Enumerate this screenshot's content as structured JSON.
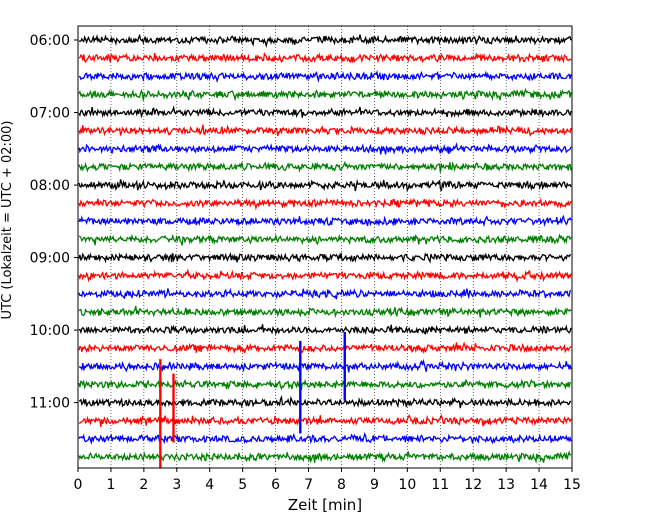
{
  "chart_data": {
    "type": "line",
    "title": "",
    "xlabel": "Zeit  [min]",
    "ylabel": "UTC (Lokalzeit = UTC + 02:00)",
    "xlim": [
      0,
      15
    ],
    "grid": "vertical dotted lines at each minute",
    "x_ticks": [
      "0",
      "1",
      "2",
      "3",
      "4",
      "5",
      "6",
      "7",
      "8",
      "9",
      "10",
      "11",
      "12",
      "13",
      "14",
      "15"
    ],
    "y_tick_labels": [
      "06:00",
      "07:00",
      "08:00",
      "09:00",
      "10:00",
      "11:00"
    ],
    "row_interval_minutes": 15,
    "rows": [
      {
        "time": "06:00",
        "color": "#000000"
      },
      {
        "time": "06:15",
        "color": "#ff0000"
      },
      {
        "time": "06:30",
        "color": "#0000ff"
      },
      {
        "time": "06:45",
        "color": "#008000"
      },
      {
        "time": "07:00",
        "color": "#000000"
      },
      {
        "time": "07:15",
        "color": "#ff0000"
      },
      {
        "time": "07:30",
        "color": "#0000ff"
      },
      {
        "time": "07:45",
        "color": "#008000"
      },
      {
        "time": "08:00",
        "color": "#000000"
      },
      {
        "time": "08:15",
        "color": "#ff0000"
      },
      {
        "time": "08:30",
        "color": "#0000ff"
      },
      {
        "time": "08:45",
        "color": "#008000"
      },
      {
        "time": "09:00",
        "color": "#000000"
      },
      {
        "time": "09:15",
        "color": "#ff0000"
      },
      {
        "time": "09:30",
        "color": "#0000ff"
      },
      {
        "time": "09:45",
        "color": "#008000"
      },
      {
        "time": "10:00",
        "color": "#000000"
      },
      {
        "time": "10:15",
        "color": "#ff0000"
      },
      {
        "time": "10:30",
        "color": "#0000ff"
      },
      {
        "time": "10:45",
        "color": "#008000"
      },
      {
        "time": "11:00",
        "color": "#000000"
      },
      {
        "time": "11:15",
        "color": "#ff0000"
      },
      {
        "time": "11:30",
        "color": "#0000ff"
      },
      {
        "time": "11:45",
        "color": "#008000"
      }
    ],
    "events": [
      {
        "row": "10:15",
        "x_min": 6.75,
        "color": "#0000ff",
        "up_rows": 0.4,
        "down_rows": 4.7
      },
      {
        "row": "10:30",
        "x_min": 8.1,
        "color": "#0000ff",
        "up_rows": 1.9,
        "down_rows": 1.9
      },
      {
        "row": "11:15",
        "x_min": 2.5,
        "color": "#ff0000",
        "up_rows": 3.4,
        "down_rows": 3.0
      },
      {
        "row": "11:15",
        "x_min": 2.9,
        "color": "#ff0000",
        "up_rows": 2.6,
        "down_rows": 1.2
      }
    ]
  }
}
